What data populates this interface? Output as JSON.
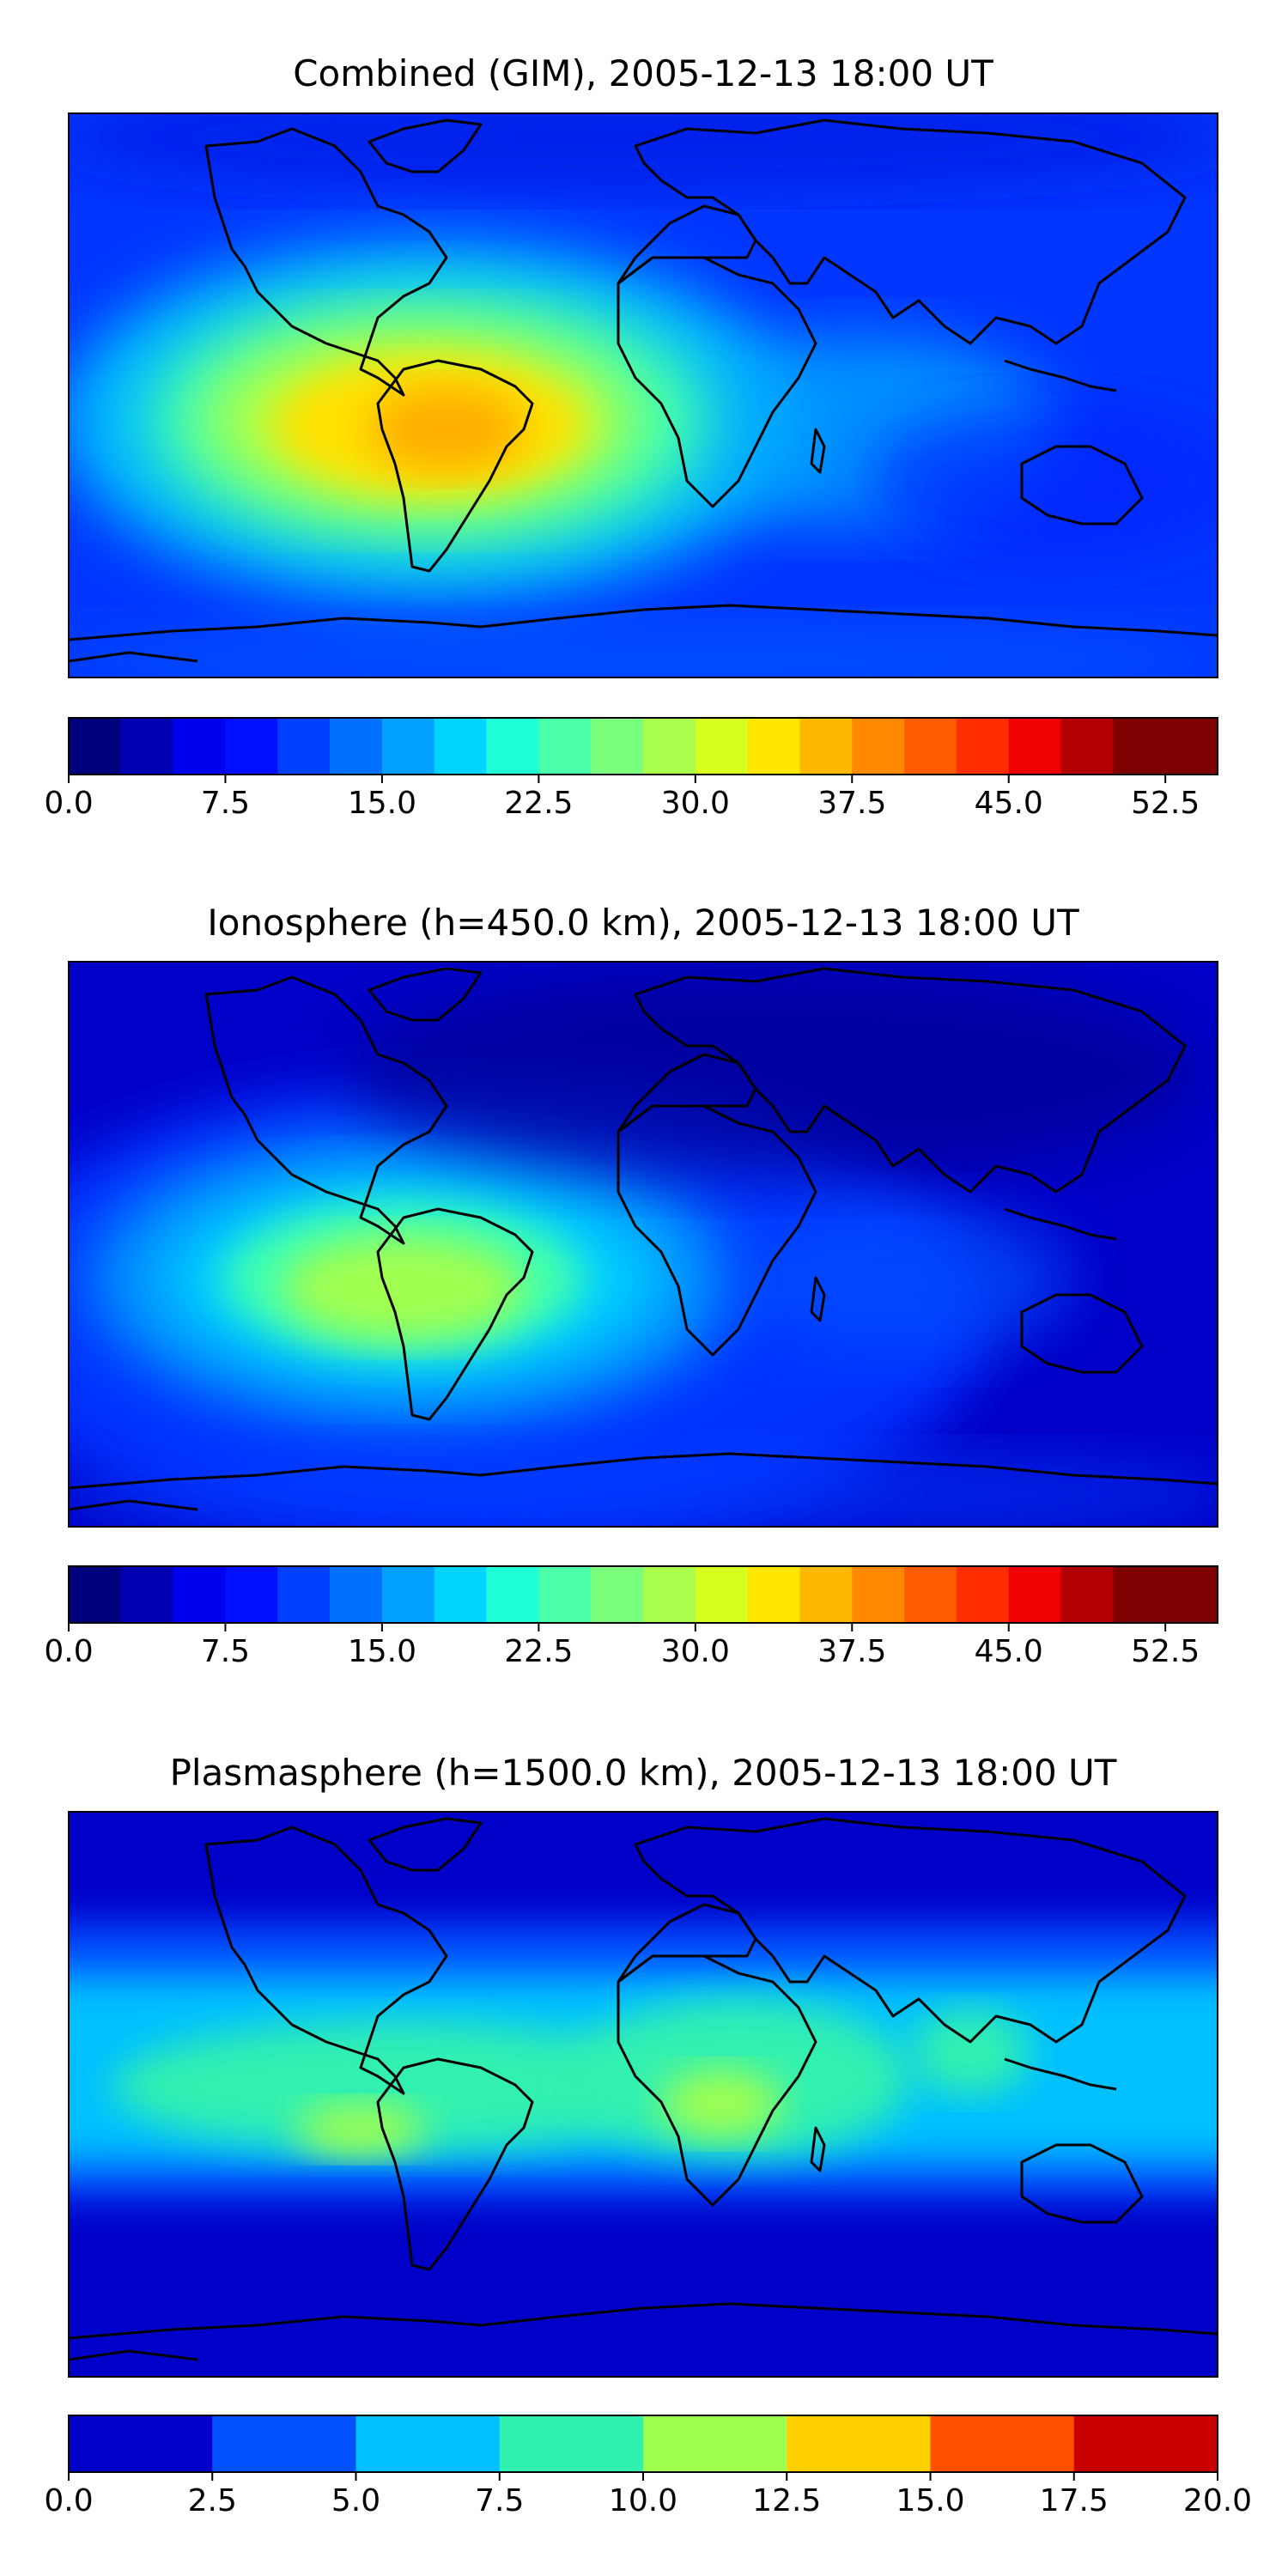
{
  "chart_data": [
    {
      "type": "contour-map",
      "title": "Combined (GIM), 2005-12-13 18:00 UT",
      "hotspots": [
        {
          "lon": -55,
          "lat": -10,
          "value": 39
        },
        {
          "lon": 25,
          "lat": -15,
          "value": 20
        },
        {
          "lon": 60,
          "lat": -18,
          "value": 18
        },
        {
          "lon": -15,
          "lat": -8,
          "value": 22
        }
      ],
      "background_value": 9,
      "colorbar": {
        "min": 0,
        "max": 55,
        "step": 2.5,
        "ticks": [
          0.0,
          7.5,
          15.0,
          22.5,
          30.0,
          37.5,
          45.0,
          52.5
        ],
        "tick_labels": [
          "0.0",
          "7.5",
          "15.0",
          "22.5",
          "30.0",
          "37.5",
          "45.0",
          "52.5"
        ],
        "colors": [
          "#00007f",
          "#0000b2",
          "#0000f1",
          "#0010ff",
          "#0040ff",
          "#0070ff",
          "#00a0ff",
          "#00d4ff",
          "#1fffd7",
          "#4cffa9",
          "#79ff7c",
          "#a9ff4c",
          "#d7ff1f",
          "#ffe600",
          "#ffb800",
          "#ff8900",
          "#ff5c00",
          "#ff2d00",
          "#f10000",
          "#b20000",
          "#7f0000",
          "#7f0000"
        ]
      }
    },
    {
      "type": "contour-map",
      "title": "Ionosphere  (h=450.0 km), 2005-12-13 18:00 UT",
      "hotspots": [
        {
          "lon": -55,
          "lat": -10,
          "value": 29
        },
        {
          "lon": -25,
          "lat": -8,
          "value": 20
        },
        {
          "lon": 60,
          "lat": -15,
          "value": 11
        }
      ],
      "background_value": 6,
      "colorbar": {
        "min": 0,
        "max": 55,
        "step": 2.5,
        "ticks": [
          0.0,
          7.5,
          15.0,
          22.5,
          30.0,
          37.5,
          45.0,
          52.5
        ],
        "tick_labels": [
          "0.0",
          "7.5",
          "15.0",
          "22.5",
          "30.0",
          "37.5",
          "45.0",
          "52.5"
        ],
        "colors": [
          "#00007f",
          "#0000b2",
          "#0000f1",
          "#0010ff",
          "#0040ff",
          "#0070ff",
          "#00a0ff",
          "#00d4ff",
          "#1fffd7",
          "#4cffa9",
          "#79ff7c",
          "#a9ff4c",
          "#d7ff1f",
          "#ffe600",
          "#ffb800",
          "#ff8900",
          "#ff5c00",
          "#ff2d00",
          "#f10000",
          "#b20000",
          "#7f0000",
          "#7f0000"
        ]
      }
    },
    {
      "type": "contour-map",
      "title": "Plasmasphere (h=1500.0 km), 2005-12-13 18:00 UT",
      "hotspots": [
        {
          "lon": -60,
          "lat": -5,
          "value": 11
        },
        {
          "lon": 25,
          "lat": -5,
          "value": 11
        },
        {
          "lon": 110,
          "lat": 5,
          "value": 10
        }
      ],
      "band": {
        "center_lat": 0,
        "value": 8.5
      },
      "background_value": 2,
      "colorbar": {
        "min": 0,
        "max": 20,
        "step": 2.5,
        "ticks": [
          0.0,
          2.5,
          5.0,
          7.5,
          10.0,
          12.5,
          15.0,
          17.5,
          20.0
        ],
        "tick_labels": [
          "0.0",
          "2.5",
          "5.0",
          "7.5",
          "10.0",
          "12.5",
          "15.0",
          "17.5",
          "20.0"
        ],
        "colors": [
          "#0000c8",
          "#0050ff",
          "#00c0ff",
          "#30f0b0",
          "#a0ff50",
          "#ffd000",
          "#ff5000",
          "#c80000"
        ]
      }
    }
  ]
}
